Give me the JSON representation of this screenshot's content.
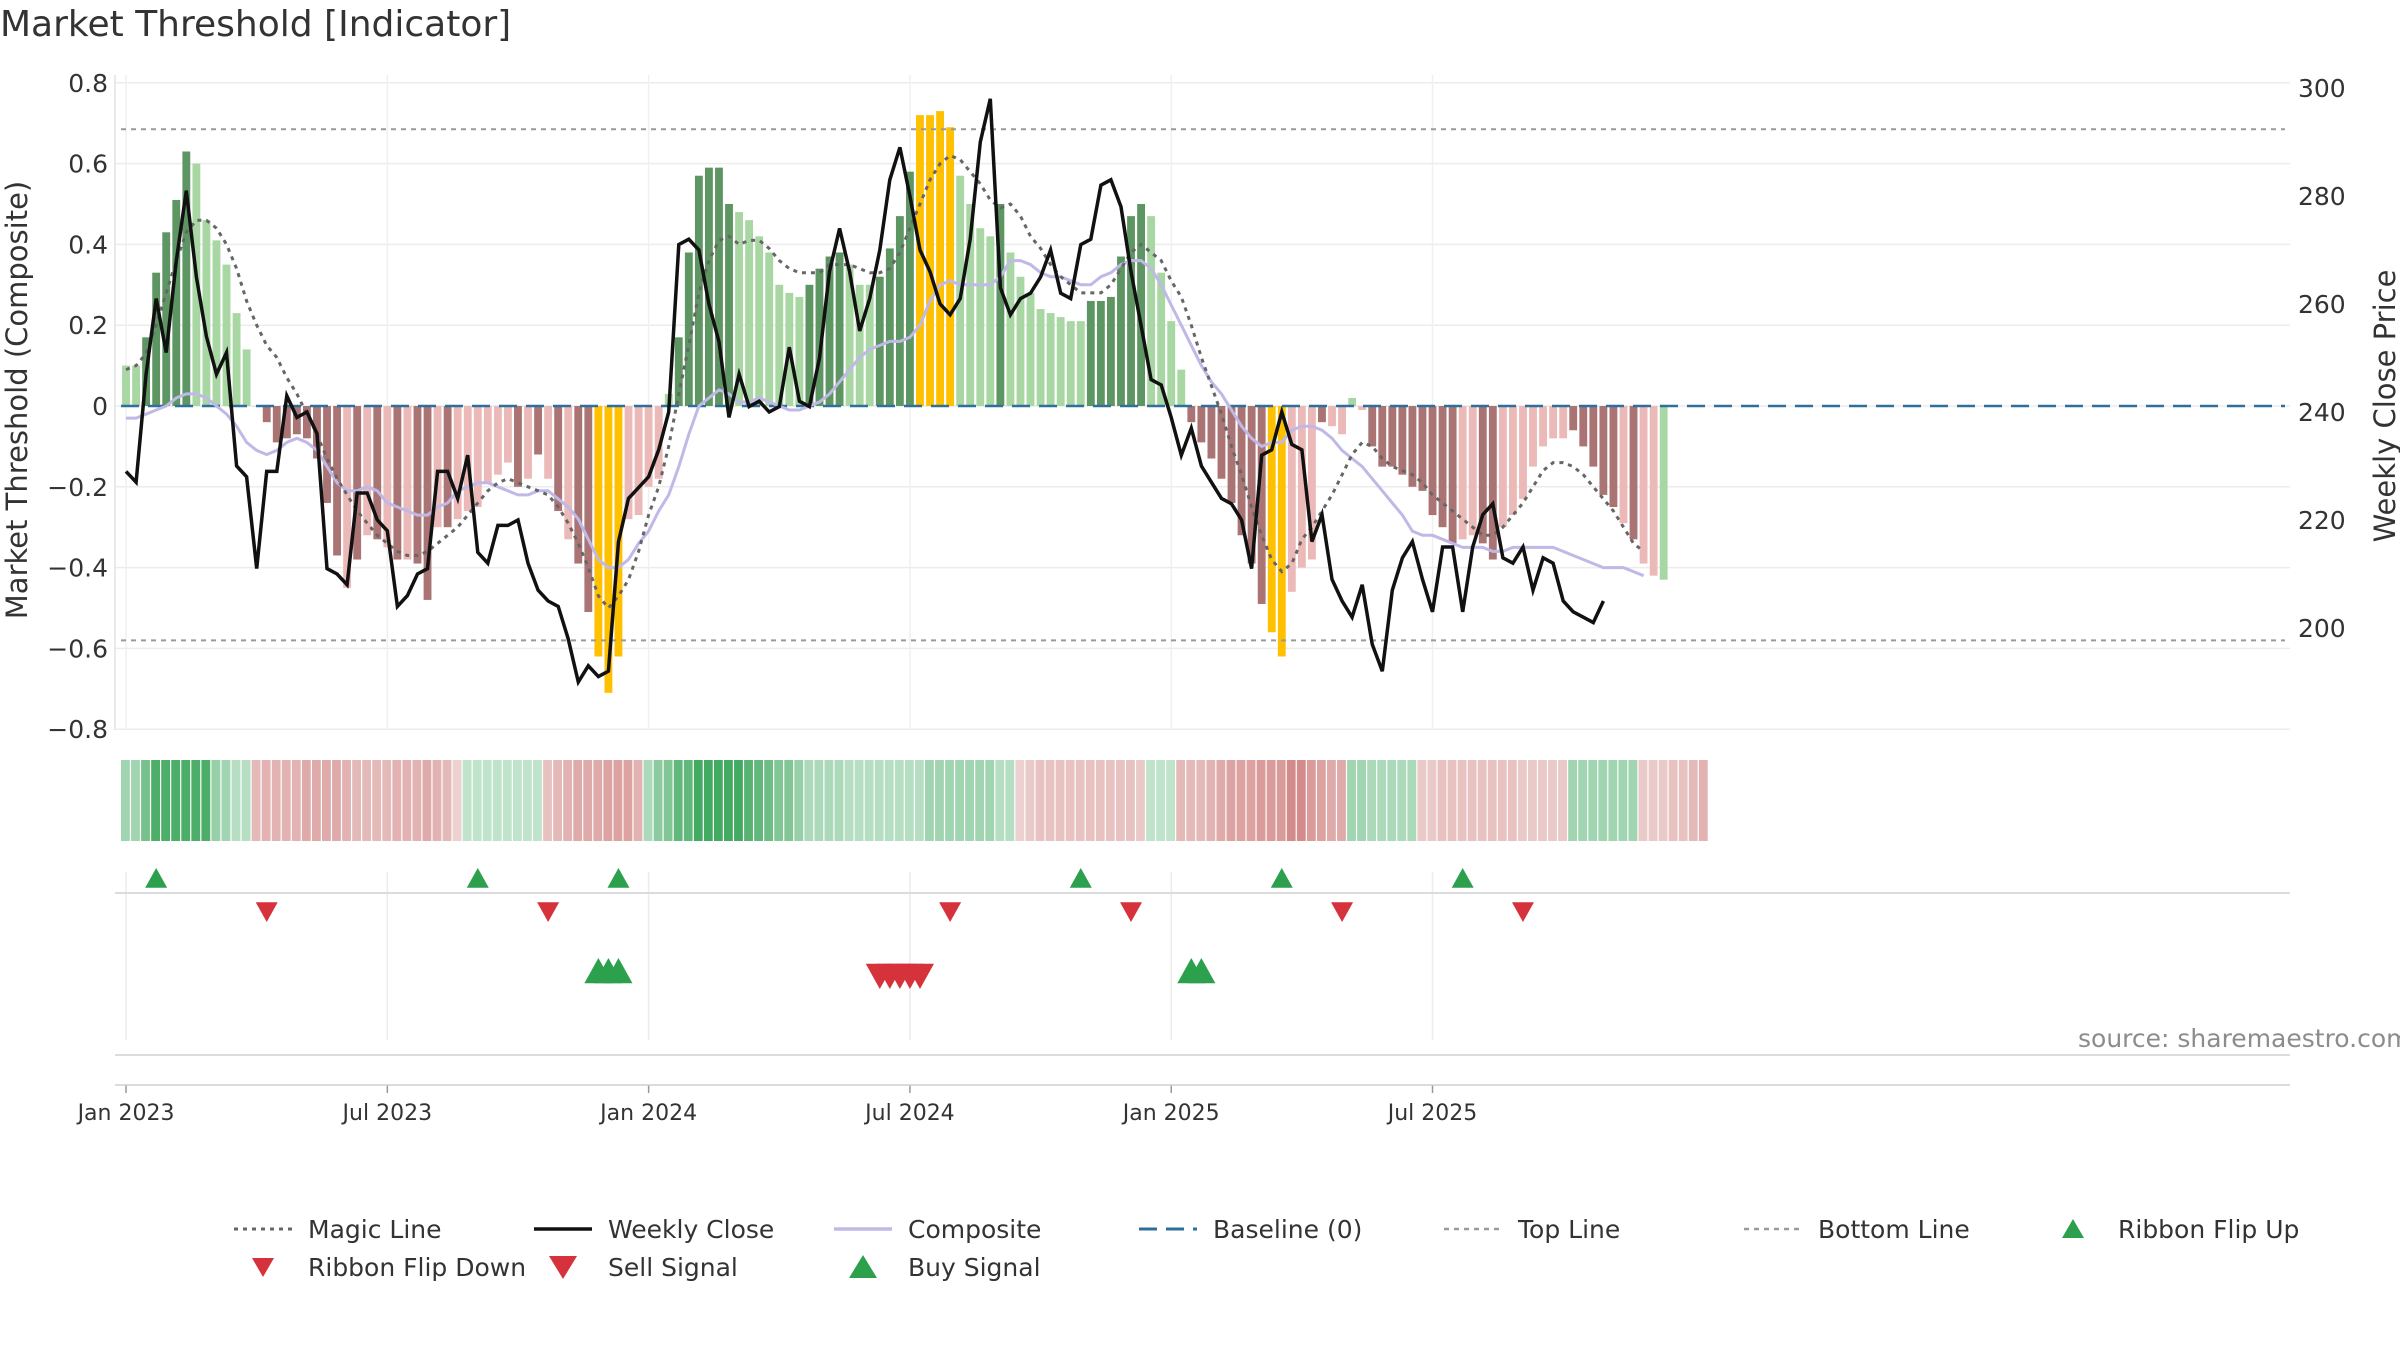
{
  "title": "Market Threshold [Indicator]",
  "source": "source: sharemaestro.com",
  "colors": {
    "dark_green": "#5e9663",
    "light_green": "#a9d7a4",
    "dark_red": "#a97473",
    "light_red": "#ebbab8",
    "yellow": "#ffc000",
    "close_line": "#111111",
    "magic_line": "#666666",
    "composite_line": "#c0b8e6",
    "baseline": "#2e6f9c",
    "threshold_lines": "#9a9a9a",
    "buy": "#2ca04c",
    "sell": "#d6323c"
  },
  "chart_data": {
    "type": "bar",
    "title": "Market Threshold [Indicator]",
    "ylabel": "Market Threshold (Composite)",
    "y2label": "Weekly Close Price",
    "ylim": [
      -0.85,
      0.83
    ],
    "y2lim": [
      187,
      301
    ],
    "yticks": [
      "0.8",
      "0.6",
      "0.4",
      "0.2",
      "0",
      "−0.2",
      "−0.4",
      "−0.6",
      "−0.8"
    ],
    "y2ticks": [
      "300",
      "280",
      "260",
      "240",
      "220",
      "200"
    ],
    "xticks": [
      {
        "week": 1,
        "label": "Jan 2023"
      },
      {
        "week": 27,
        "label": "Jul 2023"
      },
      {
        "week": 53,
        "label": "Jan 2024"
      },
      {
        "week": 79,
        "label": "Jul 2024"
      },
      {
        "week": 105,
        "label": "Jan 2025"
      },
      {
        "week": 131,
        "label": "Jul 2025"
      }
    ],
    "first_week": "2022-12-19",
    "top_line": 0.685,
    "bottom_line": -0.58,
    "baseline": 0,
    "grid": true,
    "legend_placement": "bottom",
    "series": [
      {
        "name": "Composite",
        "kind": "bar",
        "values": [
          0.1,
          0.1,
          0.17,
          0.33,
          0.43,
          0.51,
          0.63,
          0.6,
          0.46,
          0.41,
          0.35,
          0.23,
          0.14,
          0,
          -0.04,
          -0.09,
          -0.08,
          -0.07,
          -0.08,
          -0.13,
          -0.24,
          -0.37,
          -0.45,
          -0.38,
          -0.32,
          -0.33,
          -0.35,
          -0.38,
          -0.38,
          -0.39,
          -0.48,
          -0.3,
          -0.3,
          -0.28,
          -0.26,
          -0.25,
          -0.19,
          -0.17,
          -0.14,
          -0.2,
          -0.18,
          -0.12,
          -0.18,
          -0.26,
          -0.33,
          -0.39,
          -0.51,
          -0.62,
          -0.71,
          -0.62,
          -0.28,
          -0.27,
          -0.2,
          -0.18,
          0.03,
          0.17,
          0.38,
          0.57,
          0.59,
          0.59,
          0.5,
          0.48,
          0.46,
          0.42,
          0.38,
          0.3,
          0.28,
          0.27,
          0.3,
          0.34,
          0.37,
          0.38,
          0.35,
          0.3,
          0.3,
          0.32,
          0.39,
          0.47,
          0.58,
          0.72,
          0.72,
          0.73,
          0.69,
          0.57,
          0.5,
          0.44,
          0.42,
          0.5,
          0.38,
          0.32,
          0.28,
          0.24,
          0.23,
          0.22,
          0.21,
          0.21,
          0.26,
          0.26,
          0.27,
          0.37,
          0.47,
          0.5,
          0.47,
          0.33,
          0.21,
          0.09,
          -0.04,
          -0.09,
          -0.13,
          -0.18,
          -0.24,
          -0.32,
          -0.39,
          -0.49,
          -0.56,
          -0.62,
          -0.46,
          -0.4,
          -0.38,
          -0.04,
          -0.05,
          -0.07,
          0.02,
          -0.01,
          -0.1,
          -0.15,
          -0.15,
          -0.17,
          -0.2,
          -0.21,
          -0.27,
          -0.3,
          -0.34,
          -0.33,
          -0.32,
          -0.34,
          -0.38,
          -0.3,
          -0.27,
          -0.23,
          -0.15,
          -0.1,
          -0.08,
          -0.08,
          -0.06,
          -0.1,
          -0.15,
          -0.22,
          -0.25,
          -0.29,
          -0.33,
          -0.39,
          -0.42,
          -0.43
        ],
        "colors": [
          "lg",
          "lg",
          "dg",
          "dg",
          "dg",
          "dg",
          "dg",
          "lg",
          "lg",
          "lg",
          "lg",
          "lg",
          "lg",
          "lg",
          "dr",
          "dr",
          "dr",
          "dr",
          "dr",
          "dr",
          "dr",
          "dr",
          "lr",
          "dr",
          "lr",
          "dr",
          "lr",
          "dr",
          "lr",
          "dr",
          "dr",
          "lr",
          "dr",
          "lr",
          "lr",
          "lr",
          "lr",
          "lr",
          "lr",
          "dr",
          "lr",
          "dr",
          "lr",
          "dr",
          "lr",
          "dr",
          "dr",
          "y",
          "y",
          "y",
          "lr",
          "lr",
          "lr",
          "lr",
          "lg",
          "dg",
          "dg",
          "dg",
          "dg",
          "dg",
          "dg",
          "lg",
          "lg",
          "lg",
          "lg",
          "lg",
          "lg",
          "lg",
          "dg",
          "dg",
          "dg",
          "dg",
          "lg",
          "lg",
          "lg",
          "dg",
          "dg",
          "dg",
          "dg",
          "y",
          "y",
          "y",
          "y",
          "lg",
          "lg",
          "lg",
          "lg",
          "dg",
          "lg",
          "lg",
          "lg",
          "lg",
          "lg",
          "lg",
          "lg",
          "lg",
          "dg",
          "dg",
          "dg",
          "dg",
          "dg",
          "dg",
          "lg",
          "lg",
          "lg",
          "lg",
          "dr",
          "dr",
          "dr",
          "dr",
          "dr",
          "dr",
          "dr",
          "dr",
          "y",
          "y",
          "lr",
          "lr",
          "lr",
          "dr",
          "lr",
          "lr",
          "lg",
          "lr",
          "dr",
          "dr",
          "dr",
          "dr",
          "dr",
          "dr",
          "dr",
          "dr",
          "dr",
          "lr",
          "lr",
          "dr",
          "dr",
          "lr",
          "lr",
          "lr",
          "lr",
          "lr",
          "lr",
          "lr",
          "dr",
          "dr",
          "dr",
          "dr",
          "dr",
          "lr",
          "dr",
          "lr",
          "lr"
        ]
      },
      {
        "name": "Weekly Close",
        "kind": "line",
        "axis": "right",
        "values": [
          229,
          227,
          247,
          261,
          251,
          268,
          281,
          265,
          254,
          247,
          251,
          230,
          228,
          211,
          229,
          229,
          243,
          239,
          240,
          236,
          211,
          210,
          208,
          225,
          225,
          220,
          218,
          204,
          206,
          210,
          211,
          229,
          229,
          224,
          232,
          214,
          212,
          219,
          219,
          220,
          212,
          207,
          205,
          204,
          198,
          190,
          193,
          191,
          192,
          216,
          224,
          226,
          228,
          233,
          240,
          271,
          272,
          270,
          260,
          253,
          239,
          247,
          241,
          242,
          240,
          241,
          252,
          242,
          241,
          250,
          266,
          274,
          266,
          255,
          261,
          270,
          283,
          289,
          280,
          270,
          266,
          260,
          258,
          261,
          272,
          290,
          298,
          263,
          258,
          261,
          262,
          265,
          270,
          262,
          261,
          271,
          272,
          282,
          283,
          278,
          266,
          256,
          246,
          245,
          239,
          232,
          237,
          230,
          227,
          224,
          223,
          220,
          211,
          232,
          233,
          240,
          234,
          233,
          216,
          221,
          209,
          205,
          202,
          208,
          197,
          192,
          207,
          213,
          216,
          209,
          203,
          215,
          215,
          203,
          215,
          221,
          223,
          213,
          212,
          215,
          207,
          213,
          212,
          205,
          203,
          202,
          201,
          205
        ],
        "hidden_bars": "none"
      },
      {
        "name": "Magic Line",
        "kind": "line",
        "values": [
          0.09,
          0.1,
          0.13,
          0.2,
          0.28,
          0.36,
          0.43,
          0.46,
          0.46,
          0.44,
          0.4,
          0.34,
          0.26,
          0.2,
          0.15,
          0.12,
          0.07,
          0.03,
          -0.02,
          -0.07,
          -0.13,
          -0.18,
          -0.22,
          -0.26,
          -0.29,
          -0.32,
          -0.34,
          -0.36,
          -0.37,
          -0.37,
          -0.36,
          -0.34,
          -0.32,
          -0.3,
          -0.27,
          -0.24,
          -0.21,
          -0.19,
          -0.18,
          -0.19,
          -0.2,
          -0.21,
          -0.22,
          -0.25,
          -0.29,
          -0.34,
          -0.4,
          -0.47,
          -0.5,
          -0.47,
          -0.43,
          -0.36,
          -0.27,
          -0.2,
          -0.1,
          0.03,
          0.15,
          0.28,
          0.36,
          0.41,
          0.42,
          0.4,
          0.41,
          0.41,
          0.39,
          0.36,
          0.34,
          0.33,
          0.33,
          0.33,
          0.35,
          0.35,
          0.35,
          0.34,
          0.33,
          0.33,
          0.34,
          0.38,
          0.44,
          0.5,
          0.56,
          0.6,
          0.62,
          0.61,
          0.58,
          0.55,
          0.51,
          0.49,
          0.5,
          0.47,
          0.42,
          0.39,
          0.35,
          0.32,
          0.3,
          0.28,
          0.28,
          0.28,
          0.3,
          0.34,
          0.38,
          0.4,
          0.38,
          0.36,
          0.31,
          0.27,
          0.2,
          0.12,
          0.05,
          -0.02,
          -0.1,
          -0.17,
          -0.25,
          -0.32,
          -0.38,
          -0.41,
          -0.39,
          -0.33,
          -0.3,
          -0.26,
          -0.22,
          -0.17,
          -0.12,
          -0.09,
          -0.1,
          -0.13,
          -0.15,
          -0.16,
          -0.17,
          -0.19,
          -0.22,
          -0.24,
          -0.26,
          -0.28,
          -0.3,
          -0.32,
          -0.32,
          -0.3,
          -0.27,
          -0.24,
          -0.2,
          -0.16,
          -0.14,
          -0.14,
          -0.15,
          -0.17,
          -0.2,
          -0.23,
          -0.26,
          -0.3,
          -0.34,
          -0.36
        ]
      },
      {
        "name": "Composite",
        "kind": "line",
        "values": [
          -0.03,
          -0.03,
          -0.02,
          -0.01,
          0,
          0.02,
          0.03,
          0.03,
          0.02,
          0,
          -0.02,
          -0.05,
          -0.09,
          -0.11,
          -0.12,
          -0.11,
          -0.09,
          -0.08,
          -0.09,
          -0.11,
          -0.15,
          -0.19,
          -0.21,
          -0.21,
          -0.2,
          -0.21,
          -0.24,
          -0.25,
          -0.26,
          -0.27,
          -0.27,
          -0.25,
          -0.24,
          -0.21,
          -0.2,
          -0.19,
          -0.19,
          -0.2,
          -0.21,
          -0.22,
          -0.22,
          -0.21,
          -0.21,
          -0.23,
          -0.25,
          -0.28,
          -0.33,
          -0.38,
          -0.4,
          -0.4,
          -0.38,
          -0.34,
          -0.31,
          -0.26,
          -0.22,
          -0.15,
          -0.07,
          0,
          0.02,
          0.04,
          0.03,
          0.01,
          0.01,
          0.02,
          0.01,
          0,
          -0.01,
          -0.01,
          0,
          0.01,
          0.03,
          0.06,
          0.09,
          0.12,
          0.14,
          0.15,
          0.16,
          0.16,
          0.17,
          0.2,
          0.26,
          0.3,
          0.31,
          0.3,
          0.3,
          0.3,
          0.3,
          0.32,
          0.36,
          0.36,
          0.35,
          0.33,
          0.32,
          0.32,
          0.31,
          0.3,
          0.3,
          0.32,
          0.33,
          0.35,
          0.36,
          0.36,
          0.34,
          0.3,
          0.25,
          0.2,
          0.15,
          0.1,
          0.06,
          0.03,
          -0.01,
          -0.05,
          -0.08,
          -0.1,
          -0.09,
          -0.09,
          -0.06,
          -0.05,
          -0.05,
          -0.06,
          -0.08,
          -0.11,
          -0.13,
          -0.15,
          -0.18,
          -0.21,
          -0.24,
          -0.27,
          -0.31,
          -0.32,
          -0.32,
          -0.33,
          -0.34,
          -0.35,
          -0.35,
          -0.35,
          -0.36,
          -0.36,
          -0.35,
          -0.35,
          -0.35,
          -0.35,
          -0.35,
          -0.36,
          -0.37,
          -0.38,
          -0.39,
          -0.4,
          -0.4,
          -0.4,
          -0.41,
          -0.42
        ]
      },
      {
        "name": "Baseline (0)",
        "kind": "hline",
        "value": 0
      },
      {
        "name": "Top Line",
        "kind": "hline",
        "value": 0.685
      },
      {
        "name": "Bottom Line",
        "kind": "hline",
        "value": -0.58
      }
    ],
    "ribbon": [
      0.45,
      0.45,
      0.65,
      0.85,
      0.85,
      0.85,
      0.85,
      0.85,
      0.85,
      0.5,
      0.45,
      0.35,
      0.35,
      -0.45,
      -0.5,
      -0.5,
      -0.5,
      -0.5,
      -0.55,
      -0.55,
      -0.55,
      -0.55,
      -0.5,
      -0.45,
      -0.45,
      -0.45,
      -0.45,
      -0.5,
      -0.5,
      -0.5,
      -0.55,
      -0.5,
      -0.45,
      -0.3,
      0.3,
      0.3,
      0.3,
      0.3,
      0.3,
      0.3,
      0.3,
      0.3,
      -0.4,
      -0.45,
      -0.5,
      -0.55,
      -0.55,
      -0.55,
      -0.6,
      -0.6,
      -0.6,
      -0.5,
      0.4,
      0.55,
      0.6,
      0.75,
      0.75,
      0.9,
      0.9,
      0.9,
      0.9,
      0.9,
      0.8,
      0.75,
      0.7,
      0.6,
      0.6,
      0.5,
      0.4,
      0.4,
      0.4,
      0.4,
      0.35,
      0.35,
      0.35,
      0.35,
      0.35,
      0.35,
      0.35,
      0.35,
      0.45,
      0.45,
      0.45,
      0.45,
      0.45,
      0.45,
      0.45,
      0.35,
      0.35,
      -0.3,
      -0.35,
      -0.4,
      -0.4,
      -0.4,
      -0.4,
      -0.4,
      -0.4,
      -0.4,
      -0.4,
      -0.4,
      -0.4,
      -0.35,
      0.3,
      0.3,
      0.3,
      -0.45,
      -0.45,
      -0.45,
      -0.5,
      -0.55,
      -0.6,
      -0.6,
      -0.6,
      -0.65,
      -0.65,
      -0.65,
      -0.75,
      -0.75,
      -0.65,
      -0.6,
      -0.55,
      -0.55,
      0.45,
      0.45,
      0.4,
      0.4,
      0.4,
      0.4,
      0.4,
      -0.35,
      -0.35,
      -0.4,
      -0.4,
      -0.4,
      -0.4,
      -0.4,
      -0.4,
      -0.4,
      -0.4,
      -0.35,
      -0.35,
      -0.35,
      -0.35,
      -0.35,
      0.45,
      0.45,
      0.45,
      0.45,
      0.45,
      0.45,
      0.45,
      -0.35,
      -0.35,
      -0.35,
      -0.4,
      -0.4,
      -0.45,
      -0.5
    ],
    "ribbon_flips_up": [
      3,
      35,
      49,
      95,
      115,
      133
    ],
    "ribbon_flips_down": [
      14,
      42,
      82,
      100,
      121,
      139
    ],
    "buy_signals": [
      47,
      48,
      49,
      106,
      107
    ],
    "sell_signals": [
      75,
      76,
      77,
      78,
      79
    ]
  },
  "legend": [
    {
      "label": "Magic Line",
      "style": "dotted-dark"
    },
    {
      "label": "Weekly Close",
      "style": "solid-black"
    },
    {
      "label": "Composite",
      "style": "solid-lavender"
    },
    {
      "label": "Baseline (0)",
      "style": "dashed-blue"
    },
    {
      "label": "Top Line",
      "style": "dashed-grey"
    },
    {
      "label": "Bottom Line",
      "style": "dashed-grey"
    },
    {
      "label": "Ribbon Flip Up",
      "style": "triangle-up-green"
    },
    {
      "label": "Ribbon Flip Down",
      "style": "triangle-down-red"
    },
    {
      "label": "Sell Signal",
      "style": "triangle-down-red-large"
    },
    {
      "label": "Buy Signal",
      "style": "triangle-up-green-large"
    }
  ]
}
